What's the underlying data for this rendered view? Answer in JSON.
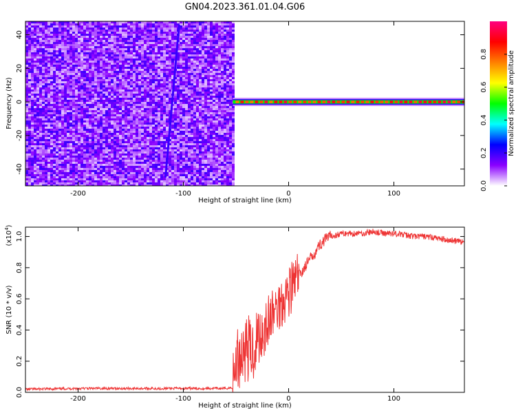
{
  "figure": {
    "title": "GN04.2023.361.01.04.G06"
  },
  "chart_data": [
    {
      "type": "heatmap",
      "xlabel": "Height of straight line (km)",
      "ylabel": "Frequency (Hz)",
      "xlim": [
        -250,
        167
      ],
      "ylim": [
        -50,
        48
      ],
      "xticks": [
        -200,
        -100,
        0,
        100
      ],
      "yticks": [
        -40,
        -20,
        0,
        20,
        40
      ],
      "noise_region_x": [
        -250,
        -53
      ],
      "line_frequency": 0,
      "signal_region_x": [
        -53,
        167
      ],
      "colorbar": {
        "label": "Normalized spectral amplitude",
        "range": [
          0,
          1
        ],
        "ticks": [
          0.0,
          0.2,
          0.4,
          0.6,
          0.8
        ],
        "tick_labels": [
          "0.0",
          "0.2",
          "0.4",
          "0.6",
          "0.8"
        ],
        "colors": [
          "#ffffff",
          "#8a00ff",
          "#0000ff",
          "#00ffff",
          "#00ff00",
          "#ffff00",
          "#ff8000",
          "#ff0000",
          "#ff0080"
        ]
      }
    },
    {
      "type": "line",
      "xlabel": "Height of straight line (km)",
      "ylabel": "SNR (10 * v/v)",
      "yscale_label": "(x10",
      "yscale_exp": "4",
      "yscale_close": ")",
      "xlim": [
        -250,
        167
      ],
      "ylim": [
        0,
        1.06
      ],
      "xticks": [
        -200,
        -100,
        0,
        100
      ],
      "yticks": [
        0.0,
        0.2,
        0.4,
        0.6,
        0.8,
        1.0
      ],
      "ytick_labels": [
        "0.0",
        "0.2",
        "0.4",
        "0.6",
        "0.8",
        "1.0"
      ],
      "color": "#ee3333",
      "series": [
        {
          "x": [
            -250,
            -200,
            -150,
            -100,
            -60,
            -53,
            -50,
            -45,
            -40,
            -35,
            -30,
            -25,
            -20,
            -15,
            -10,
            -5,
            0,
            5,
            10,
            15,
            20,
            25,
            30,
            35,
            40,
            50,
            60,
            70,
            80,
            90,
            100,
            110,
            120,
            130,
            140,
            150,
            160,
            167
          ],
          "y": [
            0.02,
            0.025,
            0.025,
            0.025,
            0.025,
            0.03,
            0.2,
            0.25,
            0.3,
            0.25,
            0.35,
            0.4,
            0.45,
            0.5,
            0.55,
            0.6,
            0.65,
            0.7,
            0.75,
            0.8,
            0.85,
            0.9,
            0.95,
            0.98,
            1.0,
            1.02,
            1.02,
            1.02,
            1.03,
            1.02,
            1.02,
            1.01,
            1.0,
            1.0,
            0.99,
            0.98,
            0.97,
            0.96
          ]
        }
      ]
    }
  ]
}
